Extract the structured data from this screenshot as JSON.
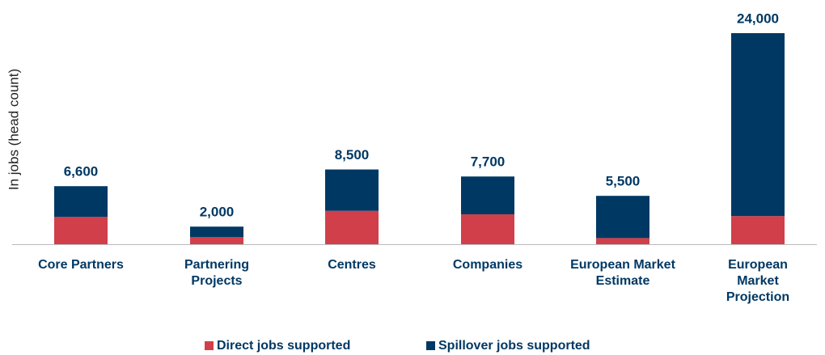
{
  "chart_data": {
    "type": "stacked_bar",
    "y_label": "In jobs (head count)",
    "categories": [
      "Core Partners",
      "Partnering Projects",
      "Centres",
      "Companies",
      "European Market Estimate",
      "European Market Projection"
    ],
    "series": [
      {
        "name": "Direct jobs supported",
        "color": "#d13f4a",
        "values": [
          3100,
          800,
          3800,
          3400,
          700,
          3200
        ]
      },
      {
        "name": "Spillover jobs supported",
        "color": "#003864",
        "values": [
          3500,
          1200,
          4700,
          4300,
          4800,
          20800
        ]
      }
    ],
    "total_labels": [
      "6,600",
      "2,000",
      "8,500",
      "7,700",
      "5,500",
      "24,000"
    ],
    "legend": "bottom"
  }
}
